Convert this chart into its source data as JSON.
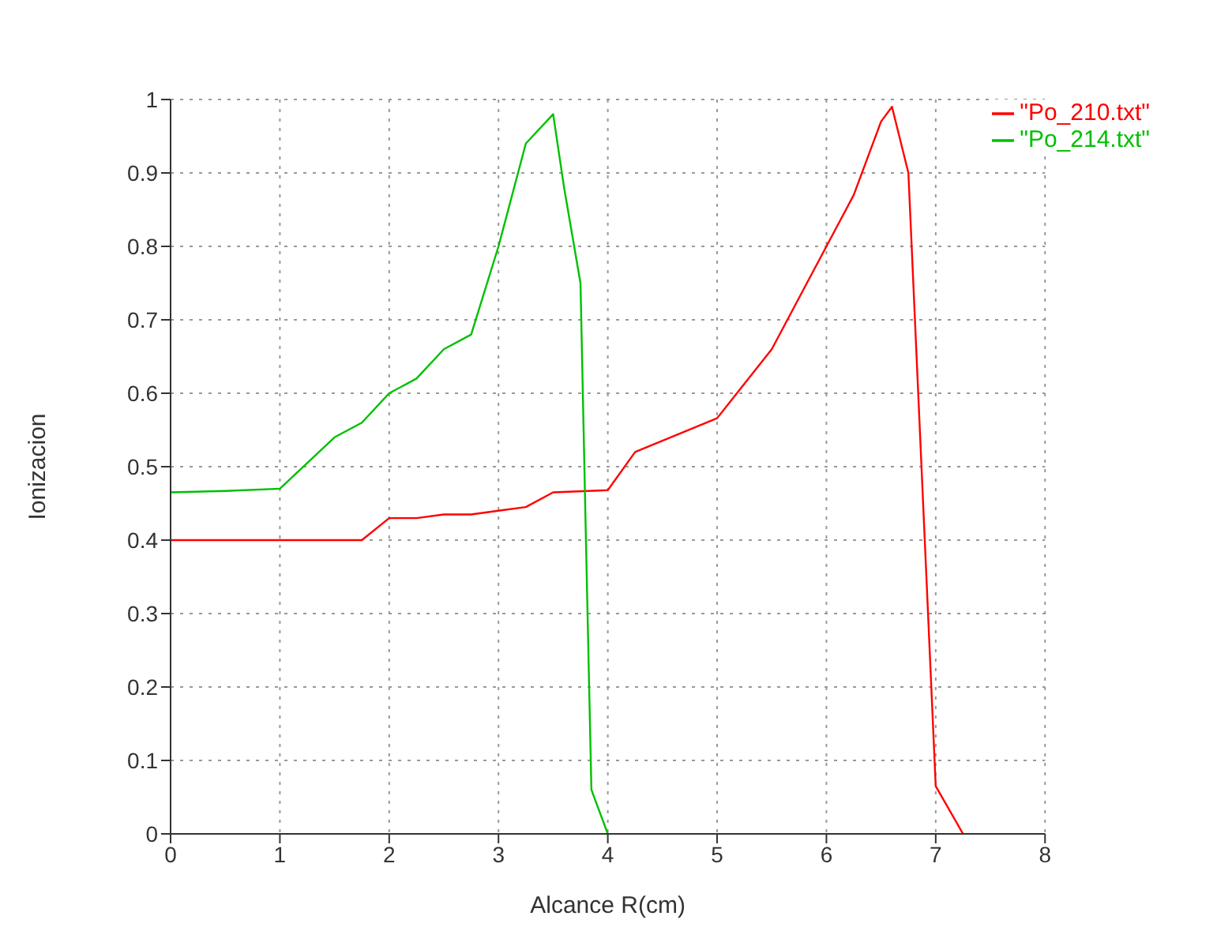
{
  "chart_data": {
    "type": "line",
    "xlabel": "Alcance R(cm)",
    "ylabel": "Ionizacion",
    "xlim": [
      0,
      8
    ],
    "xticks": [
      0,
      1,
      2,
      3,
      4,
      5,
      6,
      7,
      8
    ],
    "ylim": [
      0,
      1
    ],
    "yticks": [
      0,
      0.1,
      0.2,
      0.3,
      0.4,
      0.5,
      0.6,
      0.7,
      0.8,
      0.9,
      1
    ],
    "grid": true,
    "legend": "top right",
    "marker": "none",
    "line_style": "solid",
    "series": [
      {
        "name": "\"Po_210.txt\"",
        "color": "#ff0000",
        "x": [
          0,
          1.75,
          2,
          2.25,
          2.5,
          2.75,
          3,
          3.25,
          3.5,
          4,
          4.25,
          5,
          5.5,
          6,
          6.25,
          6.5,
          6.6,
          6.75,
          7,
          7.25
        ],
        "values": [
          0.4,
          0.4,
          0.43,
          0.43,
          0.435,
          0.435,
          0.44,
          0.445,
          0.465,
          0.468,
          0.52,
          0.566,
          0.66,
          0.8,
          0.87,
          0.97,
          0.99,
          0.9,
          0.065,
          0
        ]
      },
      {
        "name": "\"Po_214.txt\"",
        "color": "#00c000",
        "x": [
          0,
          0.5,
          1,
          1.5,
          1.75,
          2,
          2.25,
          2.5,
          2.75,
          3,
          3.25,
          3.5,
          3.6,
          3.75,
          3.8,
          3.85,
          4
        ],
        "values": [
          0.465,
          0.467,
          0.47,
          0.54,
          0.56,
          0.6,
          0.62,
          0.66,
          0.68,
          0.8,
          0.94,
          0.98,
          0.88,
          0.75,
          0.4,
          0.06,
          0
        ]
      }
    ]
  }
}
